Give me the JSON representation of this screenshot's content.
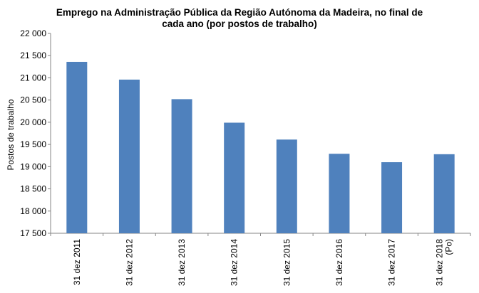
{
  "chart_data": {
    "type": "bar",
    "title_lines": [
      "Emprego na Administração Pública da Região Autónoma da Madeira, no final de",
      "cada ano (por postos  de trabalho)"
    ],
    "ylabel": "Postos de trabalho",
    "xlabel": "",
    "ylim": [
      17500,
      22000
    ],
    "y_ticks": [
      17500,
      18000,
      18500,
      19000,
      19500,
      20000,
      20500,
      21000,
      21500,
      22000
    ],
    "y_tick_labels": [
      "17 500",
      "18 000",
      "18 500",
      "19 000",
      "19 500",
      "20 000",
      "20 500",
      "21 000",
      "21 500",
      "22 000"
    ],
    "categories": [
      "31 dez 2011",
      "31 dez 2012",
      "31 dez 2013",
      "31 dez 2014",
      "31 dez 2015",
      "31 dez 2016",
      "31 dez 2017",
      "31 dez 2018\n(Po)"
    ],
    "values": [
      21360,
      20960,
      20520,
      19990,
      19610,
      19290,
      19100,
      19280
    ],
    "bar_color": "#4F81BD",
    "grid": false,
    "legend": "none"
  }
}
